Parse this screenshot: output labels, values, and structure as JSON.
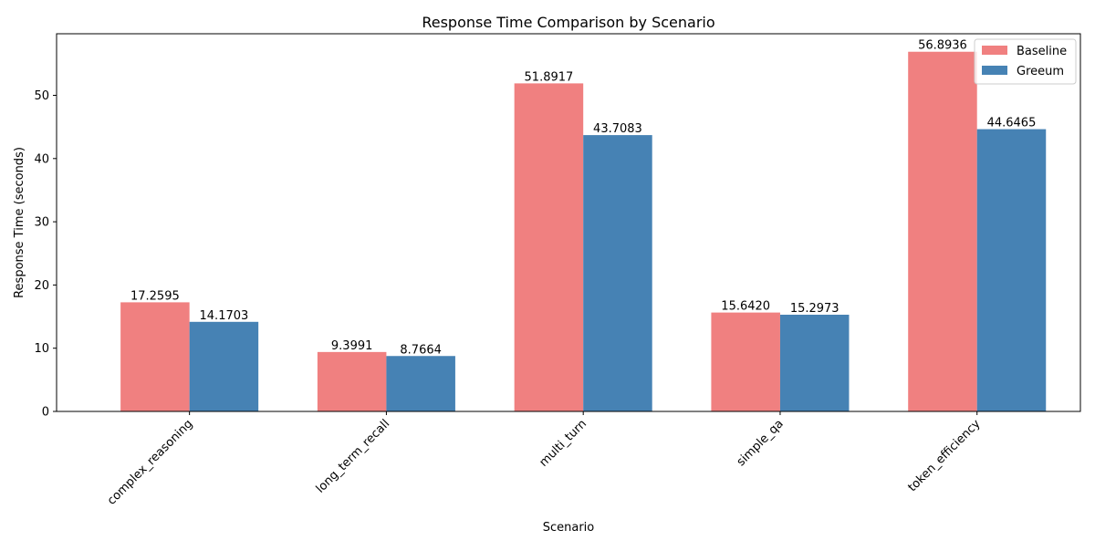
{
  "chart_data": {
    "type": "bar",
    "title": "Response Time Comparison by Scenario",
    "xlabel": "Scenario",
    "ylabel": "Response Time (seconds)",
    "categories": [
      "complex_reasoning",
      "long_term_recall",
      "multi_turn",
      "simple_qa",
      "token_efficiency"
    ],
    "series": [
      {
        "name": "Baseline",
        "color": "#f08080",
        "values": [
          17.2595,
          9.3991,
          51.8917,
          15.642,
          56.8936
        ],
        "labels": [
          "17.2595",
          "9.3991",
          "51.8917",
          "15.6420",
          "56.8936"
        ]
      },
      {
        "name": "Greeum",
        "color": "#4682b4",
        "values": [
          14.1703,
          8.7664,
          43.7083,
          15.2973,
          44.6465
        ],
        "labels": [
          "14.1703",
          "8.7664",
          "43.7083",
          "15.2973",
          "44.6465"
        ]
      }
    ],
    "ylim": [
      0,
      59.74
    ],
    "yticks": [
      0,
      10,
      20,
      30,
      40,
      50
    ],
    "grid": false,
    "legend": "top-right",
    "tick_label_rotation": -45
  }
}
